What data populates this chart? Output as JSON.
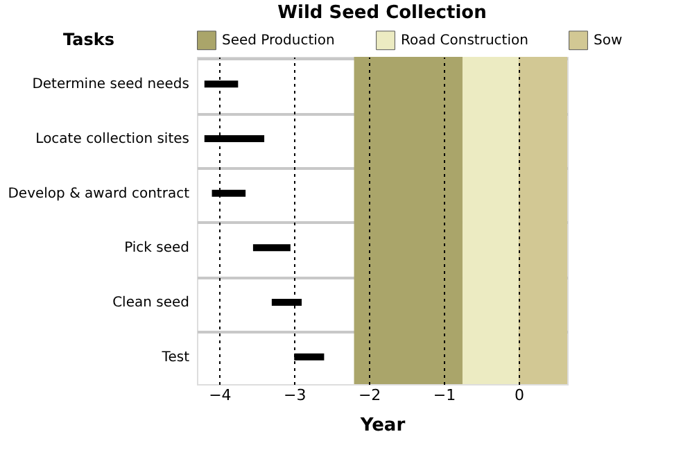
{
  "chart_data": {
    "type": "bar",
    "orientation": "horizontal",
    "title": "Wild Seed Collection",
    "xlabel": "Year",
    "ylabel": "Tasks",
    "categories": [
      "Determine seed needs",
      "Locate collection sites",
      "Develop & award contract",
      "Pick seed",
      "Clean seed",
      "Test"
    ],
    "base": [
      -4.2,
      -4.2,
      -4.1,
      -3.55,
      -3.3,
      -3.0
    ],
    "values": [
      0.45,
      0.8,
      0.45,
      0.5,
      0.4,
      0.4
    ],
    "color": "#000000",
    "xlim": [
      -4.3,
      0.65
    ],
    "xticks": [
      -4,
      -3,
      -2,
      -1,
      0
    ],
    "bands": [
      {
        "axis": "x",
        "from": -2.2,
        "to": -0.75,
        "label": "Seed Production",
        "color": "#aaa56a"
      },
      {
        "axis": "x",
        "from": -0.75,
        "to": 0,
        "label": "Road Construction",
        "color": "#ecebc2"
      },
      {
        "axis": "x",
        "from": 0,
        "to": 0.65,
        "label": "Sow",
        "color": "#d2c894"
      }
    ],
    "grid": true,
    "legend": "top"
  }
}
